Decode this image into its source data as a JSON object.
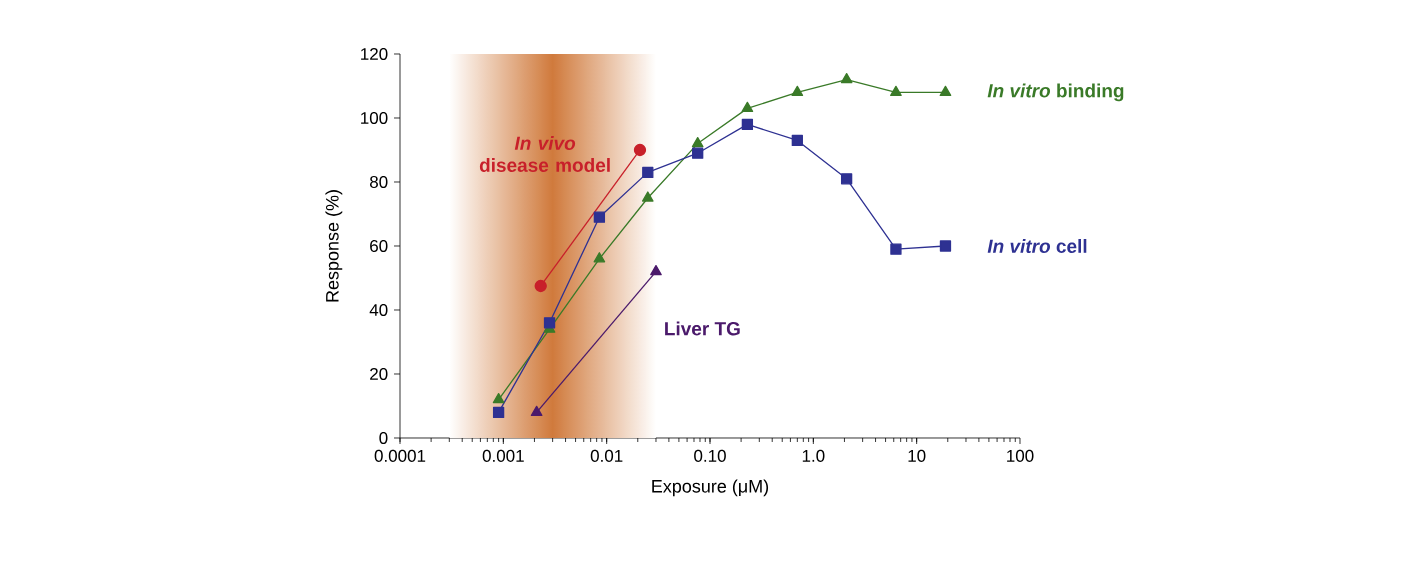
{
  "chart_data": {
    "type": "line",
    "xlabel": "Exposure (μM)",
    "ylabel": "Response (%)",
    "log": "x",
    "xlim": [
      0.0001,
      100
    ],
    "xticks": [
      0.0001,
      0.001,
      0.01,
      {
        "value": 0.1,
        "label": "0.10"
      },
      {
        "value": 1,
        "label": "1.0"
      },
      10,
      100
    ],
    "ylim": [
      0,
      120
    ],
    "yticks": [
      0,
      20,
      40,
      60,
      80,
      100,
      120
    ],
    "grid": false,
    "legend": false,
    "bands": [
      {
        "axis": "x",
        "from": 0.0003,
        "to": 0.03,
        "color": "#d07a3c"
      }
    ],
    "series": [
      {
        "name": "*In vivo* disease model",
        "color": "#c8202a",
        "marker": "circle",
        "x": [
          0.0023,
          0.021
        ],
        "values": [
          47.5,
          90
        ]
      },
      {
        "name": "*In vitro* binding",
        "color": "#3a7a28",
        "marker": "triangle",
        "x": [
          0.0009,
          0.0028,
          0.0085,
          0.025,
          0.076,
          0.23,
          0.7,
          2.1,
          6.3,
          19
        ],
        "values": [
          12,
          34,
          56,
          75,
          92,
          103,
          108,
          112,
          108,
          108
        ]
      },
      {
        "name": "*In vitro* cell",
        "color": "#2e3192",
        "marker": "square",
        "x": [
          0.0009,
          0.0028,
          0.0085,
          0.025,
          0.076,
          0.23,
          0.7,
          2.1,
          6.3,
          19
        ],
        "values": [
          8,
          36,
          69,
          83,
          89,
          98,
          93,
          81,
          59,
          60
        ]
      },
      {
        "name": "Liver TG",
        "color": "#4b1a6b",
        "marker": "triangle",
        "x": [
          0.0021,
          0.03
        ],
        "values": [
          8,
          52
        ]
      }
    ]
  }
}
